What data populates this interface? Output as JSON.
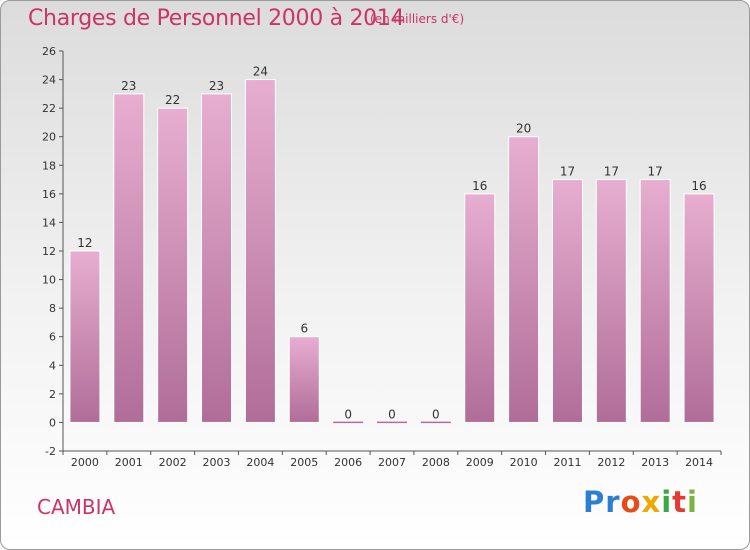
{
  "header": {
    "title": "Charges de Personnel 2000 à 2014",
    "subtitle": "(en milliers d'€)"
  },
  "footer": {
    "place": "CAMBIA",
    "logo": [
      "Pr",
      "o",
      "x",
      "i",
      "t",
      "i"
    ]
  },
  "colors": {
    "bar_light": "#e7aed0",
    "bar_dark": "#b06d98",
    "title": "#cc3366"
  },
  "chart_data": {
    "type": "bar",
    "categories": [
      "2000",
      "2001",
      "2002",
      "2003",
      "2004",
      "2005",
      "2006",
      "2007",
      "2008",
      "2009",
      "2010",
      "2011",
      "2012",
      "2013",
      "2014"
    ],
    "values": [
      12,
      23,
      22,
      23,
      24,
      6,
      0,
      0,
      0,
      16,
      20,
      17,
      17,
      17,
      16
    ],
    "title": "Charges de Personnel 2000 à 2014",
    "subtitle": "(en milliers d'€)",
    "xlabel": "",
    "ylabel": "",
    "ylim": [
      -2,
      26
    ],
    "yticks": [
      -2,
      0,
      2,
      4,
      6,
      8,
      10,
      12,
      14,
      16,
      18,
      20,
      22,
      24,
      26
    ],
    "grid": false
  }
}
